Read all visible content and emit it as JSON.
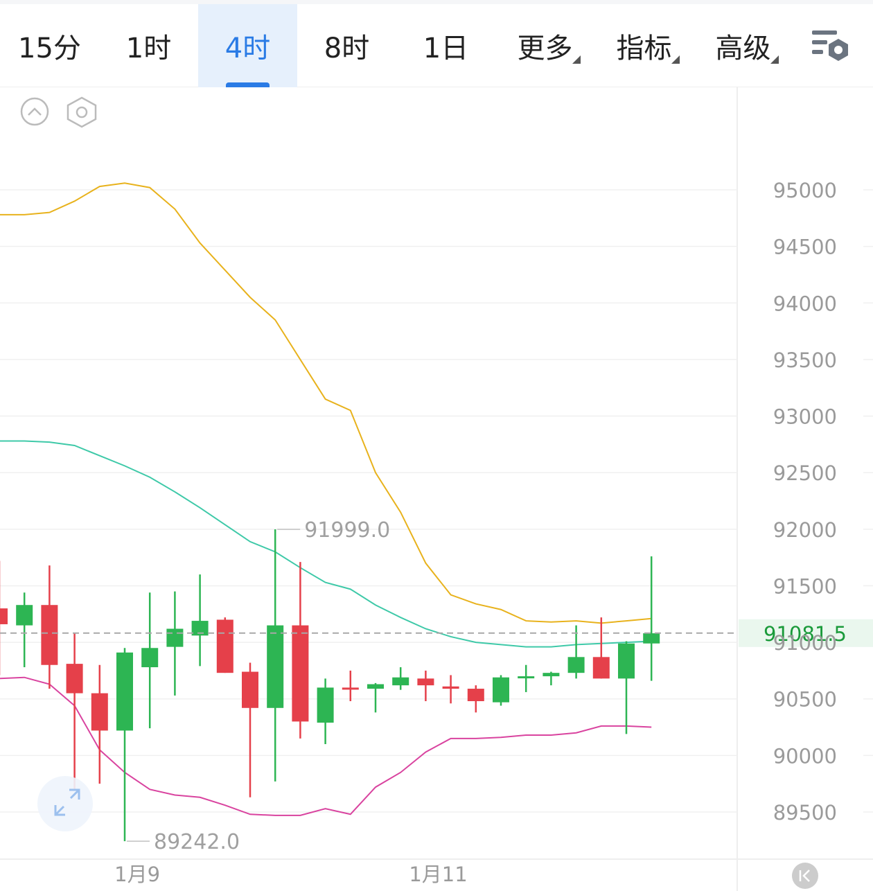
{
  "tabs": [
    {
      "label": "15分",
      "active": false,
      "dropdown": false
    },
    {
      "label": "1时",
      "active": false,
      "dropdown": false
    },
    {
      "label": "4时",
      "active": true,
      "dropdown": false
    },
    {
      "label": "8时",
      "active": false,
      "dropdown": false
    },
    {
      "label": "1日",
      "active": false,
      "dropdown": false
    },
    {
      "label": "更多",
      "active": false,
      "dropdown": true
    },
    {
      "label": "指标",
      "active": false,
      "dropdown": true
    },
    {
      "label": "高级",
      "active": false,
      "dropdown": true
    }
  ],
  "icons": {
    "settings": "chart-settings-icon",
    "collapse": "chevron-up-icon",
    "indicator_settings": "hexagon-settings-icon",
    "expand": "expand-icon",
    "scroll_latest": "skip-to-latest-icon"
  },
  "colors": {
    "up": "#2db553",
    "down": "#e5404a",
    "upper_band": "#e8b21c",
    "middle_band": "#3ec9a8",
    "lower_band": "#d9439f",
    "accent": "#2a7be5",
    "current_price": "#1a9a3a"
  },
  "chart_data": {
    "type": "candlestick",
    "timeframe": "4时",
    "ylim": [
      89150,
      95700
    ],
    "y_ticks": [
      95000,
      94500,
      94000,
      93500,
      93000,
      92500,
      92000,
      91500,
      91000,
      90500,
      90000,
      89500
    ],
    "x_labels": [
      {
        "label": "1月9",
        "index": 5.5
      },
      {
        "label": "1月11",
        "index": 17.5
      }
    ],
    "current_price": 91081.5,
    "annotations": [
      {
        "label": "91999.0",
        "index": 11,
        "value": 91999.0,
        "kind": "high"
      },
      {
        "label": "89242.0",
        "index": 5,
        "value": 89242.0,
        "kind": "low"
      }
    ],
    "candles": [
      {
        "o": 91300,
        "c": 91160,
        "h": 91720,
        "l": 90710
      },
      {
        "o": 91150,
        "c": 91330,
        "h": 91440,
        "l": 90780
      },
      {
        "o": 91330,
        "c": 90800,
        "h": 91680,
        "l": 90590
      },
      {
        "o": 90810,
        "c": 90550,
        "h": 91080,
        "l": 89700
      },
      {
        "o": 90550,
        "c": 90220,
        "h": 90800,
        "l": 89750
      },
      {
        "o": 90220,
        "c": 90910,
        "h": 90950,
        "l": 89242
      },
      {
        "o": 90780,
        "c": 90950,
        "h": 91440,
        "l": 90240
      },
      {
        "o": 90960,
        "c": 91120,
        "h": 91450,
        "l": 90530
      },
      {
        "o": 91060,
        "c": 91190,
        "h": 91600,
        "l": 90790
      },
      {
        "o": 91200,
        "c": 90730,
        "h": 91220,
        "l": 90730
      },
      {
        "o": 90740,
        "c": 90420,
        "h": 90820,
        "l": 89630
      },
      {
        "o": 90420,
        "c": 91150,
        "h": 91999,
        "l": 89770
      },
      {
        "o": 91150,
        "c": 90300,
        "h": 91710,
        "l": 90150
      },
      {
        "o": 90290,
        "c": 90600,
        "h": 90680,
        "l": 90100
      },
      {
        "o": 90600,
        "c": 90600,
        "h": 90750,
        "l": 90480
      },
      {
        "o": 90590,
        "c": 90630,
        "h": 90640,
        "l": 90380
      },
      {
        "o": 90620,
        "c": 90690,
        "h": 90780,
        "l": 90580
      },
      {
        "o": 90680,
        "c": 90620,
        "h": 90750,
        "l": 90480
      },
      {
        "o": 90610,
        "c": 90590,
        "h": 90710,
        "l": 90460
      },
      {
        "o": 90590,
        "c": 90480,
        "h": 90620,
        "l": 90380
      },
      {
        "o": 90470,
        "c": 90690,
        "h": 90710,
        "l": 90440
      },
      {
        "o": 90690,
        "c": 90700,
        "h": 90800,
        "l": 90560
      },
      {
        "o": 90700,
        "c": 90730,
        "h": 90740,
        "l": 90620
      },
      {
        "o": 90730,
        "c": 90870,
        "h": 91150,
        "l": 90680
      },
      {
        "o": 90870,
        "c": 90680,
        "h": 91220,
        "l": 90680
      },
      {
        "o": 90680,
        "c": 90990,
        "h": 91010,
        "l": 90190
      },
      {
        "o": 90990,
        "c": 91080,
        "h": 91760,
        "l": 90660
      }
    ],
    "series": [
      {
        "name": "",
        "color": "#e8b21c",
        "values": [
          94780,
          94780,
          94800,
          94900,
          95030,
          95060,
          95020,
          94830,
          94530,
          94290,
          94050,
          93850,
          93500,
          93150,
          93050,
          92500,
          92150,
          91700,
          91420,
          91340,
          91290,
          91190,
          91180,
          91190,
          91170,
          91190,
          91210
        ]
      },
      {
        "name": "",
        "color": "#3ec9a8",
        "values": [
          92780,
          92780,
          92770,
          92740,
          92650,
          92560,
          92460,
          92330,
          92190,
          92040,
          91890,
          91800,
          91660,
          91530,
          91470,
          91330,
          91220,
          91120,
          91050,
          91000,
          90980,
          90960,
          90960,
          90980,
          90990,
          91000,
          91010
        ]
      },
      {
        "name": "",
        "color": "#d9439f",
        "values": [
          90680,
          90690,
          90630,
          90440,
          90050,
          89850,
          89700,
          89650,
          89630,
          89560,
          89480,
          89470,
          89470,
          89530,
          89480,
          89720,
          89850,
          90030,
          90150,
          90150,
          90160,
          90180,
          90180,
          90200,
          90260,
          90260,
          90250
        ]
      }
    ]
  }
}
